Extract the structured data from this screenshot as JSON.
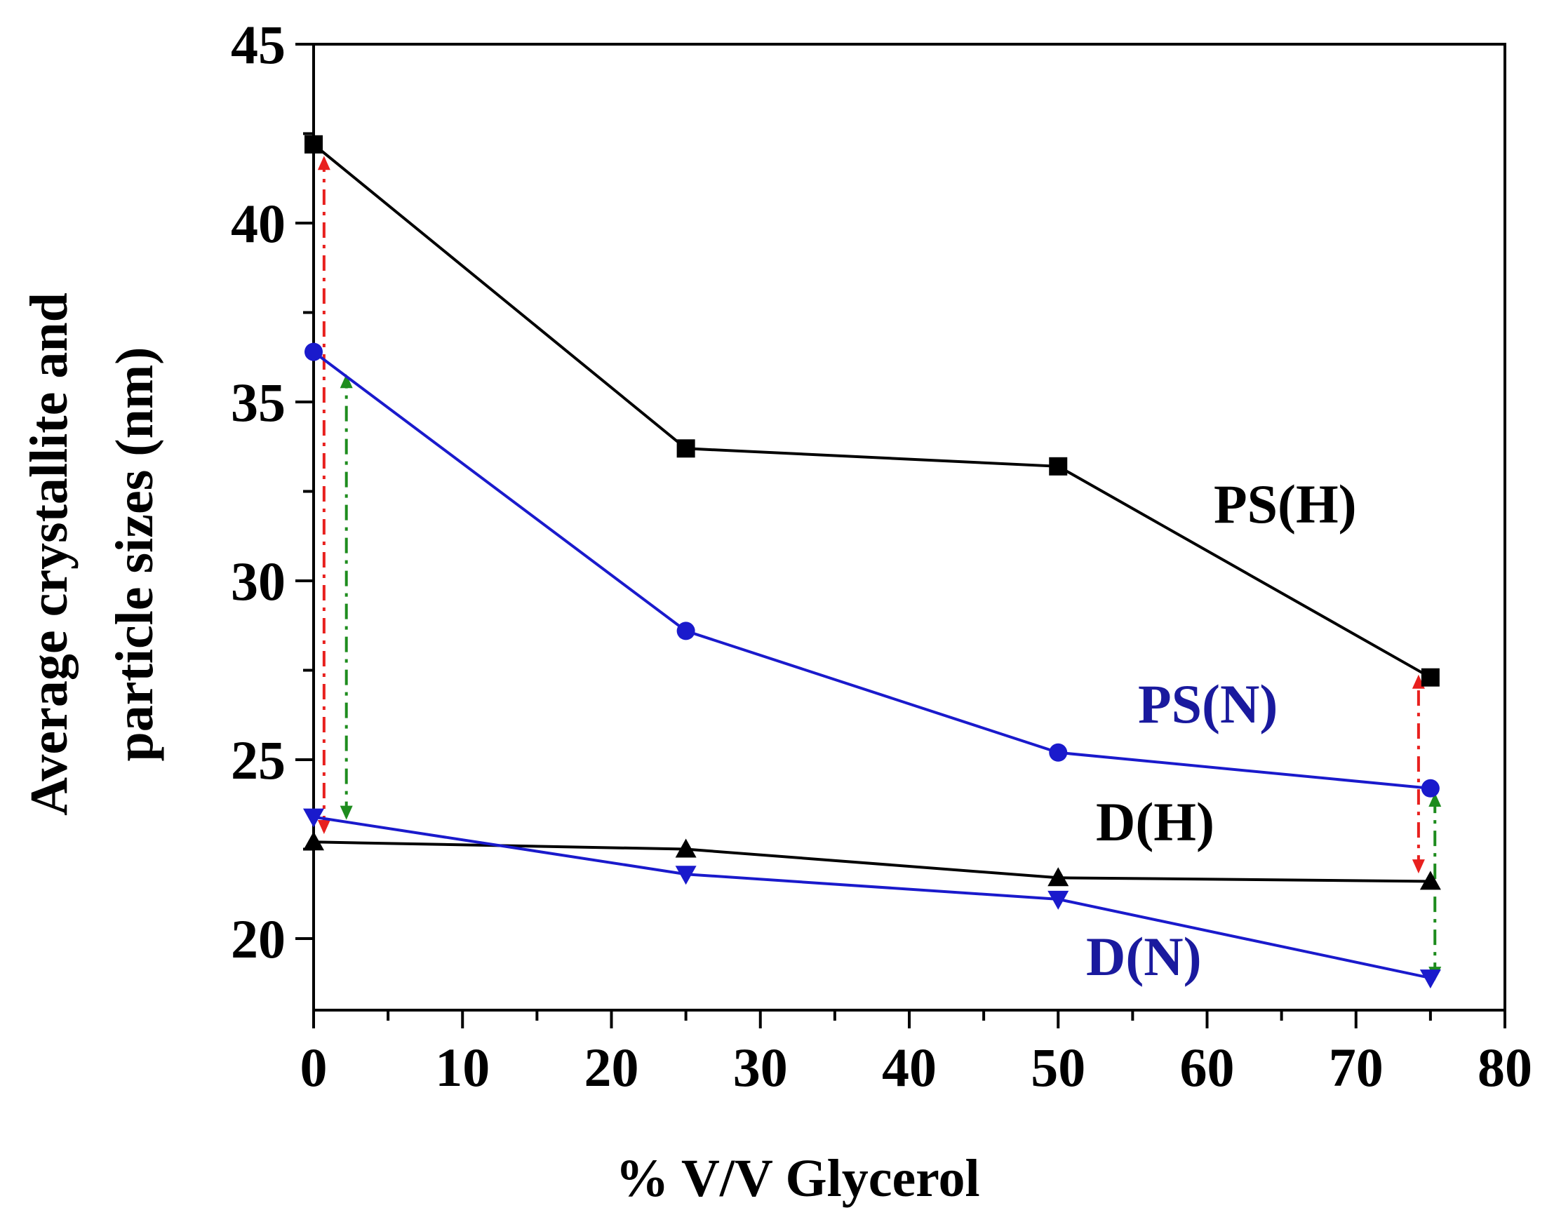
{
  "chart_data": {
    "type": "line",
    "title": "",
    "xlabel": "% V/V Glycerol",
    "ylabel_lines": [
      "Average crystallite and",
      "particle sizes (nm)"
    ],
    "xlim": [
      0,
      80
    ],
    "ylim": [
      18,
      45
    ],
    "x_ticks": [
      0,
      10,
      20,
      30,
      40,
      50,
      60,
      70,
      80
    ],
    "y_ticks": [
      20,
      25,
      30,
      35,
      40,
      45
    ],
    "x": [
      0,
      25,
      50,
      75
    ],
    "series": [
      {
        "name": "PS(H)",
        "color": "#000000",
        "marker": "square",
        "values": [
          42.2,
          33.7,
          33.2,
          27.3
        ]
      },
      {
        "name": "PS(N)",
        "color": "#1a1acc",
        "marker": "circle",
        "values": [
          36.4,
          28.6,
          25.2,
          24.2
        ]
      },
      {
        "name": "D(H)",
        "color": "#000000",
        "marker": "triangle-up",
        "values": [
          22.7,
          22.5,
          21.7,
          21.6
        ]
      },
      {
        "name": "D(N)",
        "color": "#1a1acc",
        "marker": "triangle-down",
        "values": [
          23.4,
          21.8,
          21.1,
          18.9
        ]
      }
    ],
    "annotations": [
      {
        "type": "double-arrow",
        "color": "#e8201e",
        "x": 0.7,
        "y_from": 23.0,
        "y_to": 41.8
      },
      {
        "type": "double-arrow",
        "color": "#1e8c1e",
        "x": 2.2,
        "y_from": 23.4,
        "y_to": 35.7
      },
      {
        "type": "double-arrow",
        "color": "#e8201e",
        "x": 74.2,
        "y_from": 21.9,
        "y_to": 27.3
      },
      {
        "type": "double-arrow",
        "color": "#1e8c1e",
        "x": 75.3,
        "y_from": 18.9,
        "y_to": 24.0
      }
    ],
    "label_colors": {
      "PS(H)": "#000000",
      "PS(N)": "#1a1a9e",
      "D(H)": "#000000",
      "D(N)": "#1a1a9e"
    }
  }
}
